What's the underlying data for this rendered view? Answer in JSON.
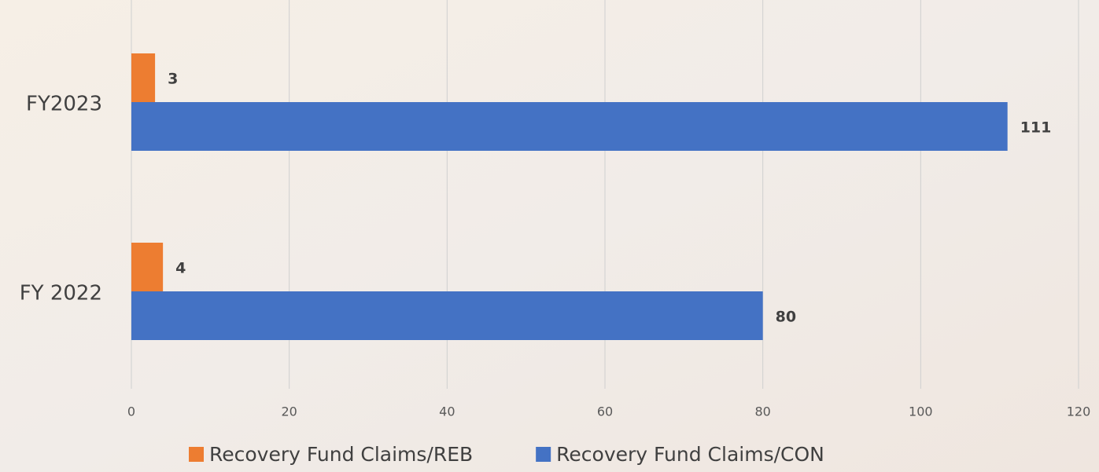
{
  "chart_data": {
    "type": "hbar",
    "categories": [
      "FY2023",
      "FY 2022"
    ],
    "series": [
      {
        "name": "Recovery Fund Claims/REB",
        "color": "#ed7d31",
        "values": [
          3,
          4
        ]
      },
      {
        "name": "Recovery Fund Claims/CON",
        "color": "#4472c4",
        "values": [
          111,
          80
        ]
      }
    ],
    "xlim": [
      0,
      120
    ],
    "xticks": [
      0,
      20,
      40,
      60,
      80,
      100,
      120
    ],
    "grid": true,
    "legend": "bottom"
  }
}
